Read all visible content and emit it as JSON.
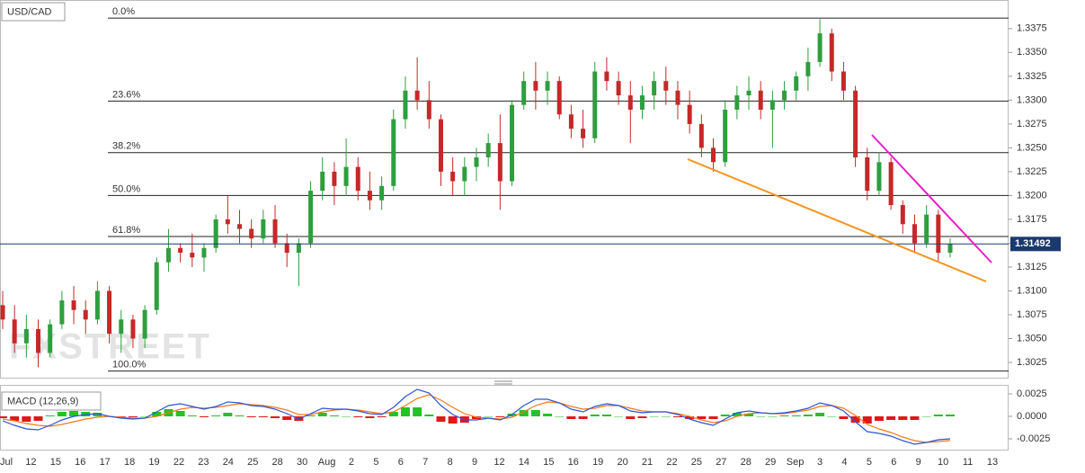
{
  "chart_data": [
    {
      "type": "candlestick",
      "title": "USD/CAD",
      "watermark": "FXSTREET",
      "ylim": [
        1.3009,
        1.3405
      ],
      "yticks": [
        1.3025,
        {
          "value": 1.305,
          "label": "1.3050"
        },
        1.3075,
        {
          "value": 1.31,
          "label": "1.3100"
        },
        1.3125,
        {
          "value": 1.315,
          "label": "1.3150"
        },
        1.3175,
        {
          "value": 1.32,
          "label": "1.3200"
        },
        1.3225,
        {
          "value": 1.325,
          "label": "1.3250"
        },
        1.3275,
        {
          "value": 1.33,
          "label": "1.3300"
        },
        1.3325,
        {
          "value": 1.335,
          "label": "1.3350"
        },
        1.3375
      ],
      "up_color": "#2e9e3e",
      "down_color": "#c62828",
      "current_price": 1.31492,
      "current_price_color": "#1a3a6e",
      "fib_levels": [
        {
          "value": 1.3386,
          "label": "0.0%"
        },
        {
          "value": 1.3299,
          "label": "23.6%"
        },
        {
          "value": 1.3245,
          "label": "38.2%"
        },
        {
          "value": 1.32,
          "label": "50.0%"
        },
        {
          "value": 1.3157,
          "label": "61.8%"
        },
        {
          "value": 1.3016,
          "label": "100.0%"
        }
      ],
      "candles": [
        [
          1.3085,
          1.31,
          1.306,
          1.307
        ],
        [
          1.307,
          1.3085,
          1.3035,
          1.3045
        ],
        [
          1.3045,
          1.3075,
          1.303,
          1.306
        ],
        [
          1.306,
          1.307,
          1.302,
          1.3035
        ],
        [
          1.3035,
          1.307,
          1.303,
          1.3065
        ],
        [
          1.3065,
          1.31,
          1.306,
          1.309
        ],
        [
          1.309,
          1.3105,
          1.3065,
          1.308
        ],
        [
          1.308,
          1.309,
          1.3055,
          1.307
        ],
        [
          1.307,
          1.311,
          1.3065,
          1.31
        ],
        [
          1.31,
          1.3105,
          1.3045,
          1.3055
        ],
        [
          1.3055,
          1.308,
          1.3035,
          1.307
        ],
        [
          1.307,
          1.3075,
          1.304,
          1.305
        ],
        [
          1.305,
          1.3085,
          1.304,
          1.308
        ],
        [
          1.308,
          1.3135,
          1.3075,
          1.313
        ],
        [
          1.313,
          1.3165,
          1.312,
          1.3145
        ],
        [
          1.3145,
          1.315,
          1.313,
          1.314
        ],
        [
          1.314,
          1.316,
          1.3125,
          1.3135
        ],
        [
          1.3135,
          1.315,
          1.312,
          1.3145
        ],
        [
          1.3145,
          1.318,
          1.314,
          1.3175
        ],
        [
          1.3175,
          1.32,
          1.316,
          1.317
        ],
        [
          1.317,
          1.3185,
          1.315,
          1.3165
        ],
        [
          1.3165,
          1.3175,
          1.3145,
          1.3155
        ],
        [
          1.3155,
          1.3185,
          1.315,
          1.3175
        ],
        [
          1.3175,
          1.319,
          1.3145,
          1.315
        ],
        [
          1.315,
          1.316,
          1.3125,
          1.314
        ],
        [
          1.314,
          1.3155,
          1.3105,
          1.315
        ],
        [
          1.315,
          1.3215,
          1.3145,
          1.3205
        ],
        [
          1.3205,
          1.324,
          1.3195,
          1.3225
        ],
        [
          1.3225,
          1.3235,
          1.319,
          1.321
        ],
        [
          1.321,
          1.326,
          1.32,
          1.323
        ],
        [
          1.323,
          1.324,
          1.3195,
          1.3205
        ],
        [
          1.3205,
          1.3225,
          1.3185,
          1.3195
        ],
        [
          1.3195,
          1.322,
          1.3185,
          1.321
        ],
        [
          1.321,
          1.329,
          1.3205,
          1.328
        ],
        [
          1.328,
          1.3325,
          1.327,
          1.331
        ],
        [
          1.331,
          1.3345,
          1.329,
          1.33
        ],
        [
          1.33,
          1.332,
          1.327,
          1.328
        ],
        [
          1.328,
          1.3285,
          1.321,
          1.3225
        ],
        [
          1.3225,
          1.324,
          1.32,
          1.3215
        ],
        [
          1.3215,
          1.324,
          1.32,
          1.323
        ],
        [
          1.323,
          1.325,
          1.3215,
          1.324
        ],
        [
          1.324,
          1.3265,
          1.323,
          1.3255
        ],
        [
          1.3255,
          1.3285,
          1.3185,
          1.3215
        ],
        [
          1.3215,
          1.33,
          1.321,
          1.3295
        ],
        [
          1.3295,
          1.333,
          1.329,
          1.332
        ],
        [
          1.332,
          1.334,
          1.329,
          1.331
        ],
        [
          1.331,
          1.333,
          1.3295,
          1.332
        ],
        [
          1.332,
          1.3325,
          1.328,
          1.3285
        ],
        [
          1.3285,
          1.3295,
          1.326,
          1.327
        ],
        [
          1.327,
          1.329,
          1.325,
          1.326
        ],
        [
          1.326,
          1.334,
          1.3255,
          1.333
        ],
        [
          1.333,
          1.3345,
          1.331,
          1.332
        ],
        [
          1.332,
          1.333,
          1.3295,
          1.3305
        ],
        [
          1.3305,
          1.332,
          1.3255,
          1.329
        ],
        [
          1.329,
          1.3315,
          1.328,
          1.3305
        ],
        [
          1.3305,
          1.333,
          1.329,
          1.332
        ],
        [
          1.332,
          1.3335,
          1.3295,
          1.331
        ],
        [
          1.331,
          1.332,
          1.328,
          1.3295
        ],
        [
          1.3295,
          1.331,
          1.3265,
          1.3275
        ],
        [
          1.3275,
          1.3285,
          1.324,
          1.325
        ],
        [
          1.325,
          1.326,
          1.3225,
          1.3235
        ],
        [
          1.3235,
          1.33,
          1.323,
          1.329
        ],
        [
          1.329,
          1.3315,
          1.328,
          1.3305
        ],
        [
          1.3305,
          1.3325,
          1.329,
          1.331
        ],
        [
          1.331,
          1.332,
          1.328,
          1.329
        ],
        [
          1.329,
          1.331,
          1.325,
          1.33
        ],
        [
          1.33,
          1.332,
          1.329,
          1.331
        ],
        [
          1.331,
          1.333,
          1.33,
          1.3325
        ],
        [
          1.3325,
          1.3355,
          1.331,
          1.334
        ],
        [
          1.334,
          1.3385,
          1.3335,
          1.337
        ],
        [
          1.337,
          1.3375,
          1.332,
          1.333
        ],
        [
          1.333,
          1.334,
          1.33,
          1.331
        ],
        [
          1.331,
          1.3315,
          1.323,
          1.324
        ],
        [
          1.324,
          1.325,
          1.3195,
          1.3205
        ],
        [
          1.3205,
          1.3245,
          1.32,
          1.3235
        ],
        [
          1.3235,
          1.324,
          1.3185,
          1.319
        ],
        [
          1.319,
          1.3195,
          1.316,
          1.317
        ],
        [
          1.317,
          1.318,
          1.314,
          1.315
        ],
        [
          1.315,
          1.319,
          1.3145,
          1.318
        ],
        [
          1.318,
          1.3185,
          1.313,
          1.314
        ],
        [
          1.314,
          1.3155,
          1.3135,
          1.3149
        ]
      ]
    },
    {
      "type": "macd",
      "title": "MACD (12,26,9)",
      "ylim": [
        -0.0037,
        0.0035
      ],
      "yticks": [
        -0.0025,
        {
          "value": 0,
          "label": "0.0000"
        },
        0.0025
      ],
      "macd_color": "#2a55d6",
      "signal_color": "#f07a1a",
      "positive_color": "#22c322",
      "negative_color": "#e01818",
      "macd": [
        -0.0005,
        -0.001,
        -0.0014,
        -0.0015,
        -0.001,
        -0.0004,
        0.0,
        0.0002,
        0.0003,
        0.0,
        -0.0002,
        -0.0003,
        -0.0002,
        0.0005,
        0.0012,
        0.0014,
        0.0011,
        0.0008,
        0.0011,
        0.0016,
        0.0015,
        0.0012,
        0.0011,
        0.0008,
        0.0003,
        -0.0003,
        0.0003,
        0.0009,
        0.0008,
        0.0008,
        0.0006,
        0.0003,
        0.0002,
        0.001,
        0.0022,
        0.003,
        0.0026,
        0.0012,
        0.0002,
        -0.0004,
        -0.0004,
        -0.0002,
        -0.0004,
        0.0002,
        0.0012,
        0.0019,
        0.0019,
        0.0015,
        0.0008,
        0.0005,
        0.0011,
        0.0014,
        0.0012,
        0.0006,
        0.0004,
        0.0005,
        0.0005,
        0.0002,
        -0.0003,
        -0.0007,
        -0.001,
        -0.0003,
        0.0004,
        0.0006,
        0.0004,
        0.0003,
        0.0004,
        0.0006,
        0.0009,
        0.0015,
        0.0012,
        0.0006,
        -0.0006,
        -0.0017,
        -0.0019,
        -0.0022,
        -0.0027,
        -0.0031,
        -0.0029,
        -0.0026,
        -0.0025
      ],
      "signal": [
        -0.0003,
        -0.0005,
        -0.0008,
        -0.001,
        -0.0011,
        -0.0009,
        -0.0006,
        -0.0003,
        -0.0001,
        0.0,
        -0.0001,
        -0.0002,
        -0.0002,
        0.0,
        0.0004,
        0.0008,
        0.001,
        0.0009,
        0.001,
        0.0012,
        0.0014,
        0.0013,
        0.0012,
        0.001,
        0.0007,
        0.0002,
        0.0002,
        0.0005,
        0.0007,
        0.0008,
        0.0007,
        0.0005,
        0.0003,
        0.0005,
        0.0012,
        0.002,
        0.0024,
        0.0018,
        0.001,
        0.0003,
        -0.0001,
        -0.0002,
        -0.0003,
        -0.0001,
        0.0005,
        0.0012,
        0.0016,
        0.0015,
        0.0011,
        0.0008,
        0.0009,
        0.0012,
        0.0012,
        0.0009,
        0.0006,
        0.0005,
        0.0005,
        0.0003,
        0.0,
        -0.0004,
        -0.0007,
        -0.0005,
        0.0,
        0.0003,
        0.0004,
        0.0003,
        0.0003,
        0.0005,
        0.0007,
        0.0011,
        0.0012,
        0.0009,
        0.0001,
        -0.0009,
        -0.0014,
        -0.0018,
        -0.0023,
        -0.0027,
        -0.0029,
        -0.0028,
        -0.0027
      ],
      "histogram": [
        -0.0002,
        -0.0005,
        -0.0006,
        -0.0005,
        0.0001,
        0.0005,
        0.0006,
        0.0005,
        0.0004,
        0,
        -0.0001,
        -0.0001,
        0,
        0.0005,
        0.0008,
        0.0006,
        0.0001,
        -0.0001,
        0.0001,
        0.0004,
        0.0001,
        -0.0001,
        -0.0001,
        -0.0002,
        -0.0004,
        -0.0005,
        0.0001,
        0.0004,
        0.0001,
        0,
        -0.0001,
        -0.0002,
        -0.0001,
        0.0005,
        0.001,
        0.001,
        0.0002,
        -0.0006,
        -0.0008,
        -0.0007,
        -0.0003,
        0,
        -0.0001,
        0.0003,
        0.0007,
        0.0007,
        0.0003,
        0,
        -0.0003,
        -0.0003,
        0.0002,
        0.0002,
        0,
        -0.0003,
        -0.0002,
        0,
        0,
        -0.0001,
        -0.0003,
        -0.0003,
        -0.0003,
        0.0002,
        0.0004,
        0.0003,
        0,
        0,
        0.0001,
        0.0001,
        0.0002,
        0.0004,
        0,
        -0.0003,
        -0.0007,
        -0.0008,
        -0.0005,
        -0.0004,
        -0.0004,
        -0.0004,
        0,
        0.0002,
        0.0002
      ],
      "categories": [
        "Jul",
        "12",
        "15",
        "16",
        "17",
        "18",
        "19",
        "22",
        "23",
        "24",
        "25",
        "28",
        "30",
        "Aug",
        "2",
        "5",
        "6",
        "7",
        "8",
        "9",
        "12",
        "14",
        "15",
        "16",
        "19",
        "20",
        "21",
        "22",
        "25",
        "27",
        "28",
        "29",
        "Sep",
        "3",
        "4",
        "5",
        "6",
        "9",
        "10",
        "11",
        "13"
      ]
    }
  ]
}
